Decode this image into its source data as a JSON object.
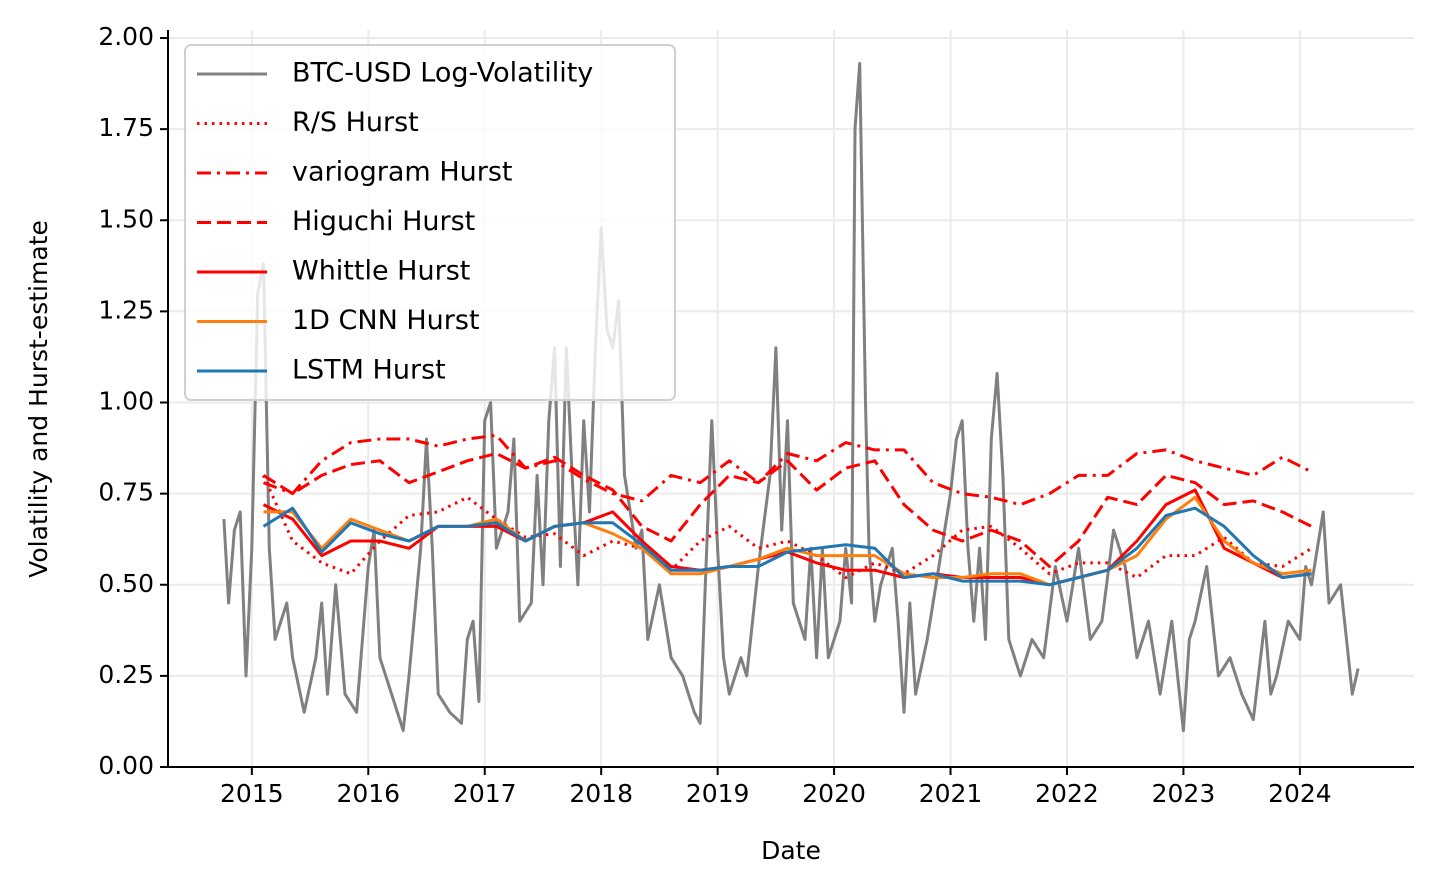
{
  "chart_data": {
    "type": "line",
    "xlabel": "Date",
    "ylabel": "Volatility and Hurst-estimate",
    "xlim": [
      2014.28,
      2024.98
    ],
    "xticks": [
      2015,
      2016,
      2017,
      2018,
      2019,
      2020,
      2021,
      2022,
      2023,
      2024
    ],
    "ylim": [
      0,
      2.022
    ],
    "yticks": [
      {
        "value": 0,
        "label": "0.00"
      },
      {
        "value": 0.25,
        "label": "0.25"
      },
      {
        "value": 0.5,
        "label": "0.50"
      },
      {
        "value": 0.75,
        "label": "0.75"
      },
      {
        "value": 1,
        "label": "1.00"
      },
      {
        "value": 1.25,
        "label": "1.25"
      },
      {
        "value": 1.5,
        "label": "1.50"
      },
      {
        "value": 1.75,
        "label": "1.75"
      },
      {
        "value": 2,
        "label": "2.00"
      }
    ],
    "grid": true,
    "legend": "upper left",
    "series": [
      {
        "name": "BTC-USD Log-Volatility",
        "color": "#808080",
        "style": "solid",
        "x": [
          2014.76,
          2014.8,
          2014.85,
          2014.9,
          2014.95,
          2015.0,
          2015.05,
          2015.1,
          2015.15,
          2015.2,
          2015.3,
          2015.35,
          2015.45,
          2015.55,
          2015.6,
          2015.65,
          2015.72,
          2015.8,
          2015.9,
          2016.0,
          2016.05,
          2016.1,
          2016.2,
          2016.3,
          2016.35,
          2016.45,
          2016.5,
          2016.55,
          2016.6,
          2016.7,
          2016.8,
          2016.85,
          2016.9,
          2016.95,
          2017.0,
          2017.05,
          2017.1,
          2017.2,
          2017.25,
          2017.3,
          2017.4,
          2017.45,
          2017.5,
          2017.55,
          2017.6,
          2017.65,
          2017.7,
          2017.75,
          2017.8,
          2017.85,
          2017.9,
          2017.95,
          2018.0,
          2018.05,
          2018.1,
          2018.15,
          2018.2,
          2018.3,
          2018.35,
          2018.4,
          2018.5,
          2018.6,
          2018.7,
          2018.8,
          2018.85,
          2018.9,
          2018.95,
          2019.0,
          2019.05,
          2019.1,
          2019.2,
          2019.25,
          2019.35,
          2019.45,
          2019.5,
          2019.55,
          2019.6,
          2019.65,
          2019.75,
          2019.8,
          2019.85,
          2019.9,
          2019.95,
          2020.0,
          2020.05,
          2020.1,
          2020.15,
          2020.18,
          2020.22,
          2020.27,
          2020.3,
          2020.35,
          2020.4,
          2020.5,
          2020.55,
          2020.6,
          2020.65,
          2020.7,
          2020.8,
          2020.9,
          2021.0,
          2021.05,
          2021.1,
          2021.15,
          2021.2,
          2021.25,
          2021.3,
          2021.35,
          2021.4,
          2021.45,
          2021.5,
          2021.6,
          2021.7,
          2021.8,
          2021.9,
          2022.0,
          2022.1,
          2022.2,
          2022.3,
          2022.4,
          2022.5,
          2022.6,
          2022.7,
          2022.8,
          2022.9,
          2023.0,
          2023.05,
          2023.1,
          2023.2,
          2023.3,
          2023.4,
          2023.5,
          2023.6,
          2023.7,
          2023.75,
          2023.8,
          2023.9,
          2024.0,
          2024.05,
          2024.1,
          2024.2,
          2024.25,
          2024.35,
          2024.4,
          2024.45,
          2024.5
        ],
        "values": [
          0.68,
          0.45,
          0.65,
          0.7,
          0.25,
          0.6,
          1.3,
          1.38,
          0.6,
          0.35,
          0.45,
          0.3,
          0.15,
          0.3,
          0.45,
          0.2,
          0.5,
          0.2,
          0.15,
          0.55,
          0.65,
          0.3,
          0.2,
          0.1,
          0.25,
          0.6,
          0.9,
          0.6,
          0.2,
          0.15,
          0.12,
          0.35,
          0.4,
          0.18,
          0.95,
          1.0,
          0.6,
          0.7,
          0.9,
          0.4,
          0.45,
          0.8,
          0.5,
          0.95,
          1.15,
          0.55,
          1.15,
          0.8,
          0.5,
          0.95,
          0.7,
          1.15,
          1.48,
          1.2,
          1.15,
          1.28,
          0.8,
          0.6,
          0.65,
          0.35,
          0.5,
          0.3,
          0.25,
          0.15,
          0.12,
          0.55,
          0.95,
          0.6,
          0.3,
          0.2,
          0.3,
          0.25,
          0.55,
          0.8,
          1.15,
          0.65,
          0.95,
          0.45,
          0.35,
          0.6,
          0.3,
          0.6,
          0.3,
          0.35,
          0.4,
          0.6,
          0.45,
          1.75,
          1.93,
          1.0,
          0.6,
          0.4,
          0.5,
          0.6,
          0.4,
          0.15,
          0.45,
          0.2,
          0.35,
          0.55,
          0.75,
          0.9,
          0.95,
          0.6,
          0.4,
          0.6,
          0.35,
          0.9,
          1.08,
          0.8,
          0.35,
          0.25,
          0.35,
          0.3,
          0.55,
          0.4,
          0.6,
          0.35,
          0.4,
          0.65,
          0.55,
          0.3,
          0.4,
          0.2,
          0.4,
          0.1,
          0.35,
          0.4,
          0.55,
          0.25,
          0.3,
          0.2,
          0.13,
          0.4,
          0.2,
          0.25,
          0.4,
          0.35,
          0.55,
          0.5,
          0.7,
          0.45,
          0.5,
          0.35,
          0.2,
          0.27
        ]
      },
      {
        "name": "R/S Hurst",
        "color": "#ff0000",
        "style": "dotted",
        "x": [
          2015.1,
          2015.35,
          2015.6,
          2015.85,
          2016.1,
          2016.35,
          2016.6,
          2016.85,
          2017.1,
          2017.35,
          2017.6,
          2017.85,
          2018.1,
          2018.35,
          2018.6,
          2018.85,
          2019.1,
          2019.35,
          2019.6,
          2019.85,
          2020.1,
          2020.35,
          2020.6,
          2020.85,
          2021.1,
          2021.35,
          2021.6,
          2021.85,
          2022.1,
          2022.35,
          2022.6,
          2022.85,
          2023.1,
          2023.35,
          2023.6,
          2023.85,
          2024.1
        ],
        "values": [
          0.8,
          0.62,
          0.56,
          0.53,
          0.62,
          0.69,
          0.7,
          0.74,
          0.68,
          0.63,
          0.64,
          0.58,
          0.62,
          0.6,
          0.54,
          0.62,
          0.66,
          0.6,
          0.62,
          0.58,
          0.52,
          0.56,
          0.53,
          0.58,
          0.65,
          0.66,
          0.6,
          0.53,
          0.56,
          0.56,
          0.52,
          0.58,
          0.58,
          0.63,
          0.56,
          0.55,
          0.6
        ]
      },
      {
        "name": "variogram Hurst",
        "color": "#ff0000",
        "style": "dashdot",
        "x": [
          2015.1,
          2015.35,
          2015.6,
          2015.85,
          2016.1,
          2016.35,
          2016.6,
          2016.85,
          2017.1,
          2017.35,
          2017.6,
          2017.85,
          2018.1,
          2018.35,
          2018.6,
          2018.85,
          2019.1,
          2019.35,
          2019.6,
          2019.85,
          2020.1,
          2020.35,
          2020.6,
          2020.85,
          2021.1,
          2021.35,
          2021.6,
          2021.85,
          2022.1,
          2022.35,
          2022.6,
          2022.85,
          2023.1,
          2023.35,
          2023.6,
          2023.85,
          2024.1
        ],
        "values": [
          0.78,
          0.75,
          0.84,
          0.89,
          0.9,
          0.9,
          0.88,
          0.9,
          0.91,
          0.82,
          0.84,
          0.79,
          0.75,
          0.73,
          0.8,
          0.78,
          0.84,
          0.78,
          0.86,
          0.84,
          0.89,
          0.87,
          0.87,
          0.78,
          0.75,
          0.74,
          0.72,
          0.75,
          0.8,
          0.8,
          0.86,
          0.87,
          0.84,
          0.82,
          0.8,
          0.85,
          0.81
        ]
      },
      {
        "name": "Higuchi Hurst",
        "color": "#ff0000",
        "style": "dashed",
        "x": [
          2015.1,
          2015.35,
          2015.6,
          2015.85,
          2016.1,
          2016.35,
          2016.6,
          2016.85,
          2017.1,
          2017.35,
          2017.6,
          2017.85,
          2018.1,
          2018.35,
          2018.6,
          2018.85,
          2019.1,
          2019.35,
          2019.6,
          2019.85,
          2020.1,
          2020.35,
          2020.6,
          2020.85,
          2021.1,
          2021.35,
          2021.6,
          2021.85,
          2022.1,
          2022.35,
          2022.6,
          2022.85,
          2023.1,
          2023.35,
          2023.6,
          2023.85,
          2024.1
        ],
        "values": [
          0.8,
          0.75,
          0.8,
          0.83,
          0.84,
          0.78,
          0.81,
          0.84,
          0.86,
          0.82,
          0.85,
          0.8,
          0.76,
          0.66,
          0.62,
          0.72,
          0.8,
          0.78,
          0.84,
          0.76,
          0.82,
          0.84,
          0.72,
          0.65,
          0.62,
          0.65,
          0.62,
          0.55,
          0.62,
          0.74,
          0.72,
          0.8,
          0.78,
          0.72,
          0.73,
          0.7,
          0.66
        ]
      },
      {
        "name": "Whittle Hurst",
        "color": "#ff0000",
        "style": "solid",
        "x": [
          2015.1,
          2015.35,
          2015.6,
          2015.85,
          2016.1,
          2016.35,
          2016.6,
          2016.85,
          2017.1,
          2017.35,
          2017.6,
          2017.85,
          2018.1,
          2018.35,
          2018.6,
          2018.85,
          2019.1,
          2019.35,
          2019.6,
          2019.85,
          2020.1,
          2020.35,
          2020.6,
          2020.85,
          2021.1,
          2021.35,
          2021.6,
          2021.85,
          2022.1,
          2022.35,
          2022.6,
          2022.85,
          2023.1,
          2023.35,
          2023.6,
          2023.85,
          2024.1
        ],
        "values": [
          0.72,
          0.68,
          0.58,
          0.62,
          0.62,
          0.6,
          0.66,
          0.66,
          0.66,
          0.62,
          0.66,
          0.67,
          0.7,
          0.62,
          0.55,
          0.54,
          0.55,
          0.57,
          0.59,
          0.56,
          0.54,
          0.54,
          0.52,
          0.53,
          0.52,
          0.52,
          0.52,
          0.5,
          0.52,
          0.54,
          0.62,
          0.72,
          0.76,
          0.6,
          0.56,
          0.52,
          0.53
        ]
      },
      {
        "name": "1D CNN Hurst",
        "color": "#ff7f0e",
        "style": "solid",
        "x": [
          2015.1,
          2015.35,
          2015.6,
          2015.85,
          2016.1,
          2016.35,
          2016.6,
          2016.85,
          2017.1,
          2017.35,
          2017.6,
          2017.85,
          2018.1,
          2018.35,
          2018.6,
          2018.85,
          2019.1,
          2019.35,
          2019.6,
          2019.85,
          2020.1,
          2020.35,
          2020.6,
          2020.85,
          2021.1,
          2021.35,
          2021.6,
          2021.85,
          2022.1,
          2022.35,
          2022.6,
          2022.85,
          2023.1,
          2023.35,
          2023.6,
          2023.85,
          2024.1
        ],
        "values": [
          0.7,
          0.7,
          0.6,
          0.68,
          0.65,
          0.62,
          0.66,
          0.66,
          0.68,
          0.62,
          0.66,
          0.67,
          0.64,
          0.6,
          0.53,
          0.53,
          0.55,
          0.57,
          0.6,
          0.58,
          0.58,
          0.58,
          0.53,
          0.52,
          0.52,
          0.53,
          0.53,
          0.5,
          0.52,
          0.54,
          0.58,
          0.68,
          0.74,
          0.62,
          0.56,
          0.53,
          0.54
        ]
      },
      {
        "name": "LSTM Hurst",
        "color": "#1f77b4",
        "style": "solid",
        "x": [
          2015.1,
          2015.35,
          2015.6,
          2015.85,
          2016.1,
          2016.35,
          2016.6,
          2016.85,
          2017.1,
          2017.35,
          2017.6,
          2017.85,
          2018.1,
          2018.35,
          2018.6,
          2018.85,
          2019.1,
          2019.35,
          2019.6,
          2019.85,
          2020.1,
          2020.35,
          2020.6,
          2020.85,
          2021.1,
          2021.35,
          2021.6,
          2021.85,
          2022.1,
          2022.35,
          2022.6,
          2022.85,
          2023.1,
          2023.35,
          2023.6,
          2023.85,
          2024.1
        ],
        "values": [
          0.66,
          0.71,
          0.59,
          0.67,
          0.64,
          0.62,
          0.66,
          0.66,
          0.67,
          0.62,
          0.66,
          0.67,
          0.67,
          0.61,
          0.54,
          0.54,
          0.55,
          0.55,
          0.59,
          0.6,
          0.61,
          0.6,
          0.52,
          0.53,
          0.51,
          0.51,
          0.51,
          0.5,
          0.52,
          0.54,
          0.6,
          0.69,
          0.71,
          0.66,
          0.58,
          0.52,
          0.53
        ]
      }
    ]
  }
}
